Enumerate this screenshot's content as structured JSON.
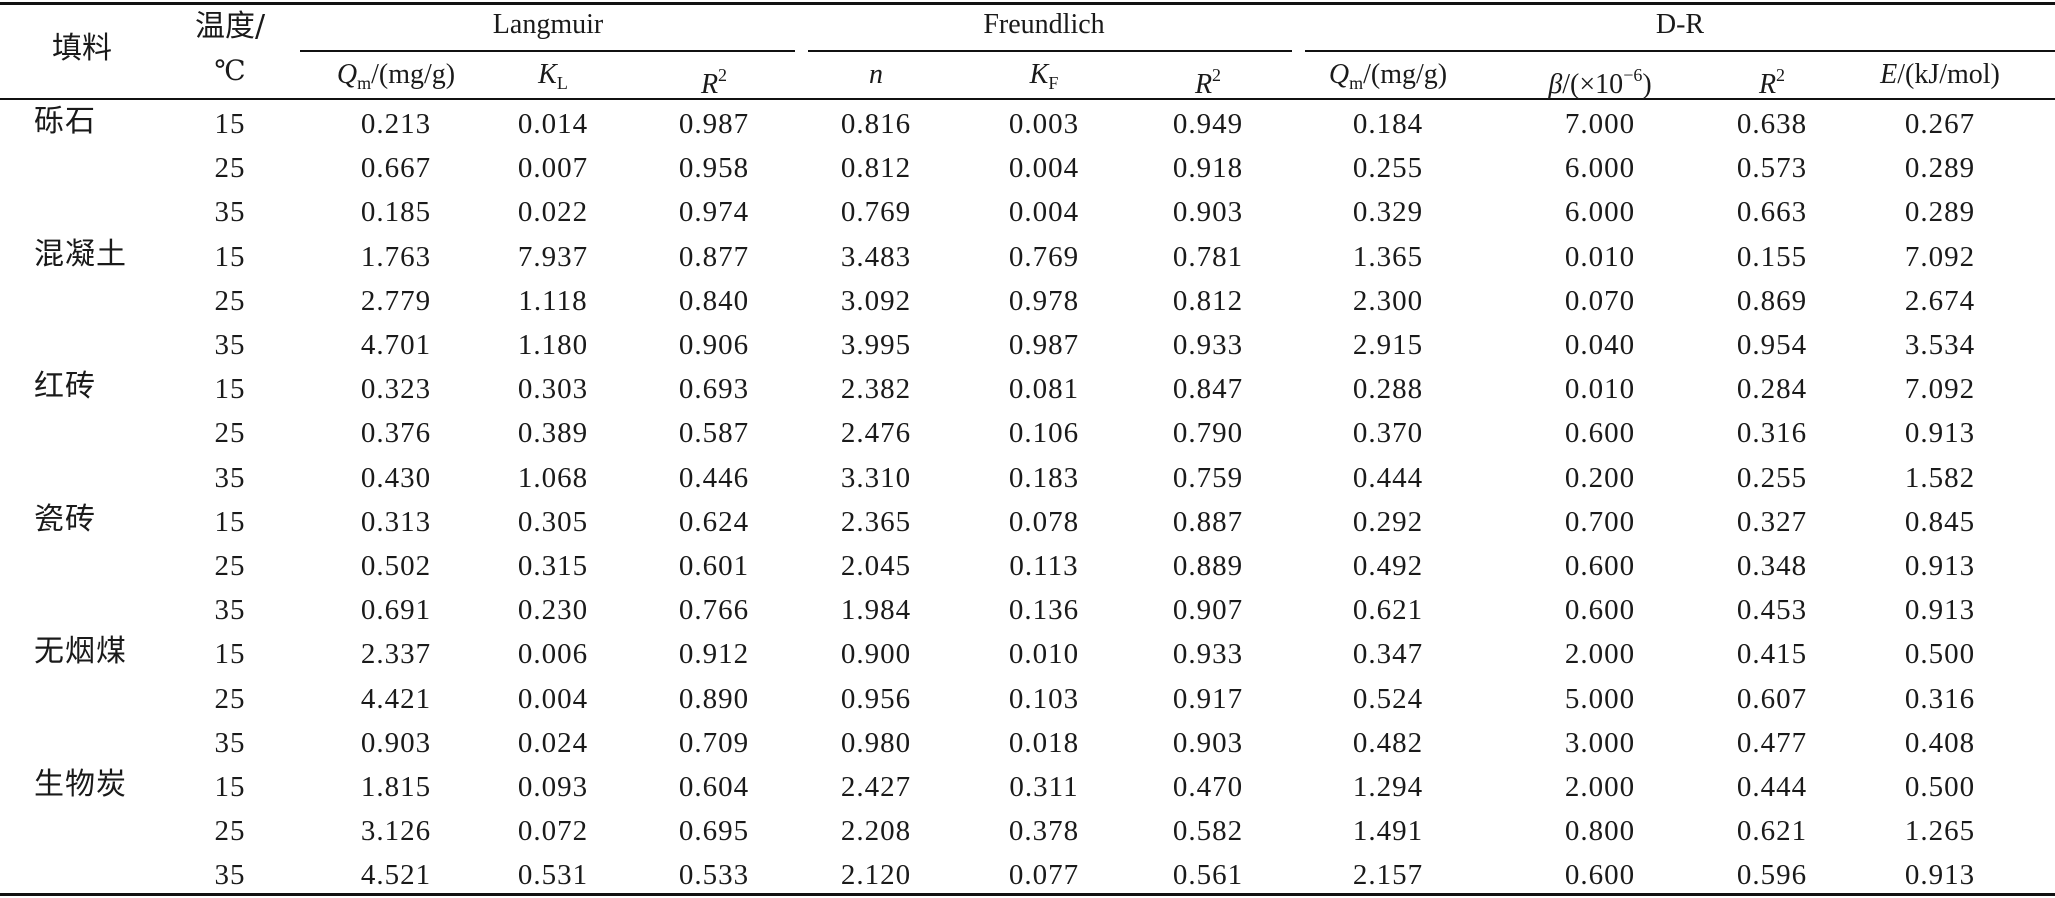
{
  "table": {
    "header": {
      "filler": "填料",
      "temp_line1": "温度/",
      "temp_line2": "℃",
      "group_langmuir": "Langmuir",
      "group_freundlich": "Freundlich",
      "group_dr": "D-R",
      "col_qm_sym": "Q",
      "col_qm_sub": "m",
      "col_qm_unit": "/(mg/g)",
      "col_kl_sym": "K",
      "col_kl_sub": "L",
      "col_r2_sym": "R",
      "col_r2_sup": "2",
      "col_n": "n",
      "col_kf_sym": "K",
      "col_kf_sub": "F",
      "col_beta_sym": "β",
      "col_beta_unit": "/(×10",
      "col_beta_sup": "−6",
      "col_beta_close": ")",
      "col_e_sym": "E",
      "col_e_unit": "/(kJ/mol)"
    },
    "rows": [
      {
        "filler": "砾石",
        "t": "15",
        "qm": "0.213",
        "kl": "0.014",
        "r2l": "0.987",
        "n": "0.816",
        "kf": "0.003",
        "r2f": "0.949",
        "qmd": "0.184",
        "beta": "7.000",
        "r2d": "0.638",
        "e": "0.267"
      },
      {
        "filler": "",
        "t": "25",
        "qm": "0.667",
        "kl": "0.007",
        "r2l": "0.958",
        "n": "0.812",
        "kf": "0.004",
        "r2f": "0.918",
        "qmd": "0.255",
        "beta": "6.000",
        "r2d": "0.573",
        "e": "0.289"
      },
      {
        "filler": "",
        "t": "35",
        "qm": "0.185",
        "kl": "0.022",
        "r2l": "0.974",
        "n": "0.769",
        "kf": "0.004",
        "r2f": "0.903",
        "qmd": "0.329",
        "beta": "6.000",
        "r2d": "0.663",
        "e": "0.289"
      },
      {
        "filler": "混凝土",
        "t": "15",
        "qm": "1.763",
        "kl": "7.937",
        "r2l": "0.877",
        "n": "3.483",
        "kf": "0.769",
        "r2f": "0.781",
        "qmd": "1.365",
        "beta": "0.010",
        "r2d": "0.155",
        "e": "7.092"
      },
      {
        "filler": "",
        "t": "25",
        "qm": "2.779",
        "kl": "1.118",
        "r2l": "0.840",
        "n": "3.092",
        "kf": "0.978",
        "r2f": "0.812",
        "qmd": "2.300",
        "beta": "0.070",
        "r2d": "0.869",
        "e": "2.674"
      },
      {
        "filler": "",
        "t": "35",
        "qm": "4.701",
        "kl": "1.180",
        "r2l": "0.906",
        "n": "3.995",
        "kf": "0.987",
        "r2f": "0.933",
        "qmd": "2.915",
        "beta": "0.040",
        "r2d": "0.954",
        "e": "3.534"
      },
      {
        "filler": "红砖",
        "t": "15",
        "qm": "0.323",
        "kl": "0.303",
        "r2l": "0.693",
        "n": "2.382",
        "kf": "0.081",
        "r2f": "0.847",
        "qmd": "0.288",
        "beta": "0.010",
        "r2d": "0.284",
        "e": "7.092"
      },
      {
        "filler": "",
        "t": "25",
        "qm": "0.376",
        "kl": "0.389",
        "r2l": "0.587",
        "n": "2.476",
        "kf": "0.106",
        "r2f": "0.790",
        "qmd": "0.370",
        "beta": "0.600",
        "r2d": "0.316",
        "e": "0.913"
      },
      {
        "filler": "",
        "t": "35",
        "qm": "0.430",
        "kl": "1.068",
        "r2l": "0.446",
        "n": "3.310",
        "kf": "0.183",
        "r2f": "0.759",
        "qmd": "0.444",
        "beta": "0.200",
        "r2d": "0.255",
        "e": "1.582"
      },
      {
        "filler": "瓷砖",
        "t": "15",
        "qm": "0.313",
        "kl": "0.305",
        "r2l": "0.624",
        "n": "2.365",
        "kf": "0.078",
        "r2f": "0.887",
        "qmd": "0.292",
        "beta": "0.700",
        "r2d": "0.327",
        "e": "0.845"
      },
      {
        "filler": "",
        "t": "25",
        "qm": "0.502",
        "kl": "0.315",
        "r2l": "0.601",
        "n": "2.045",
        "kf": "0.113",
        "r2f": "0.889",
        "qmd": "0.492",
        "beta": "0.600",
        "r2d": "0.348",
        "e": "0.913"
      },
      {
        "filler": "",
        "t": "35",
        "qm": "0.691",
        "kl": "0.230",
        "r2l": "0.766",
        "n": "1.984",
        "kf": "0.136",
        "r2f": "0.907",
        "qmd": "0.621",
        "beta": "0.600",
        "r2d": "0.453",
        "e": "0.913"
      },
      {
        "filler": "无烟煤",
        "t": "15",
        "qm": "2.337",
        "kl": "0.006",
        "r2l": "0.912",
        "n": "0.900",
        "kf": "0.010",
        "r2f": "0.933",
        "qmd": "0.347",
        "beta": "2.000",
        "r2d": "0.415",
        "e": "0.500"
      },
      {
        "filler": "",
        "t": "25",
        "qm": "4.421",
        "kl": "0.004",
        "r2l": "0.890",
        "n": "0.956",
        "kf": "0.103",
        "r2f": "0.917",
        "qmd": "0.524",
        "beta": "5.000",
        "r2d": "0.607",
        "e": "0.316"
      },
      {
        "filler": "",
        "t": "35",
        "qm": "0.903",
        "kl": "0.024",
        "r2l": "0.709",
        "n": "0.980",
        "kf": "0.018",
        "r2f": "0.903",
        "qmd": "0.482",
        "beta": "3.000",
        "r2d": "0.477",
        "e": "0.408"
      },
      {
        "filler": "生物炭",
        "t": "15",
        "qm": "1.815",
        "kl": "0.093",
        "r2l": "0.604",
        "n": "2.427",
        "kf": "0.311",
        "r2f": "0.470",
        "qmd": "1.294",
        "beta": "2.000",
        "r2d": "0.444",
        "e": "0.500"
      },
      {
        "filler": "",
        "t": "25",
        "qm": "3.126",
        "kl": "0.072",
        "r2l": "0.695",
        "n": "2.208",
        "kf": "0.378",
        "r2f": "0.582",
        "qmd": "1.491",
        "beta": "0.800",
        "r2d": "0.621",
        "e": "1.265"
      },
      {
        "filler": "",
        "t": "35",
        "qm": "4.521",
        "kl": "0.531",
        "r2l": "0.533",
        "n": "2.120",
        "kf": "0.077",
        "r2f": "0.561",
        "qmd": "2.157",
        "beta": "0.600",
        "r2d": "0.596",
        "e": "0.913"
      }
    ]
  }
}
